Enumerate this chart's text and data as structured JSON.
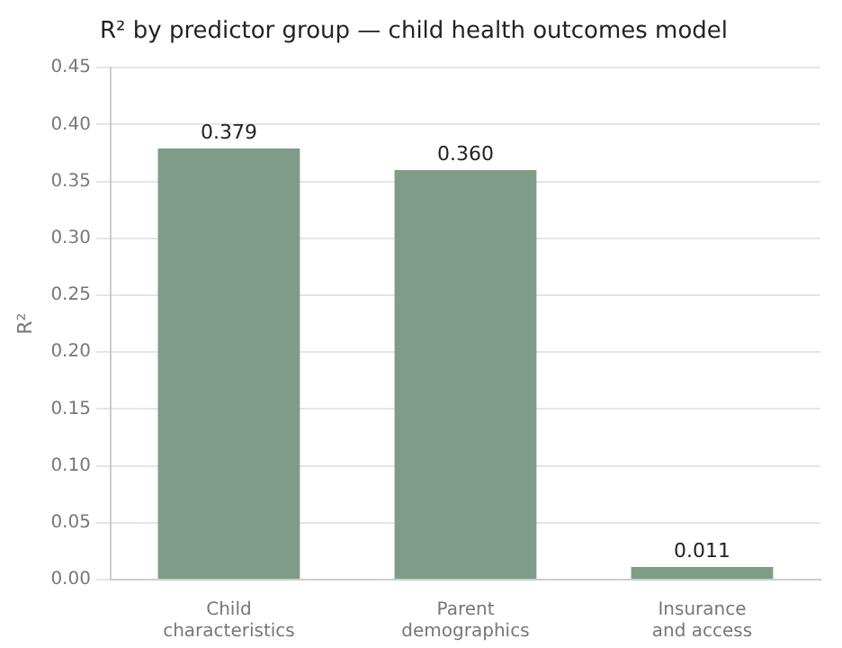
{
  "chart_data": {
    "type": "bar",
    "title": "R² by predictor group — child health outcomes model",
    "ylabel": "R²",
    "categories": [
      "Child\ncharacteristics",
      "Parent\ndemographics",
      "Insurance\nand access"
    ],
    "values": [
      0.379,
      0.36,
      0.011
    ],
    "value_labels": [
      "0.379",
      "0.360",
      "0.011"
    ],
    "color": "#7f9c89",
    "ylim": [
      0,
      0.45
    ],
    "yticks": [
      {
        "value": 0,
        "label": "0.00"
      },
      {
        "value": 0.05,
        "label": "0.05"
      },
      {
        "value": 0.1,
        "label": "0.10"
      },
      {
        "value": 0.15,
        "label": "0.15"
      },
      {
        "value": 0.2,
        "label": "0.20"
      },
      {
        "value": 0.25,
        "label": "0.25"
      },
      {
        "value": 0.3,
        "label": "0.30"
      },
      {
        "value": 0.35,
        "label": "0.35"
      },
      {
        "value": 0.4,
        "label": "0.40"
      },
      {
        "value": 0.45,
        "label": "0.45"
      }
    ],
    "grid": "y",
    "legend": false
  }
}
